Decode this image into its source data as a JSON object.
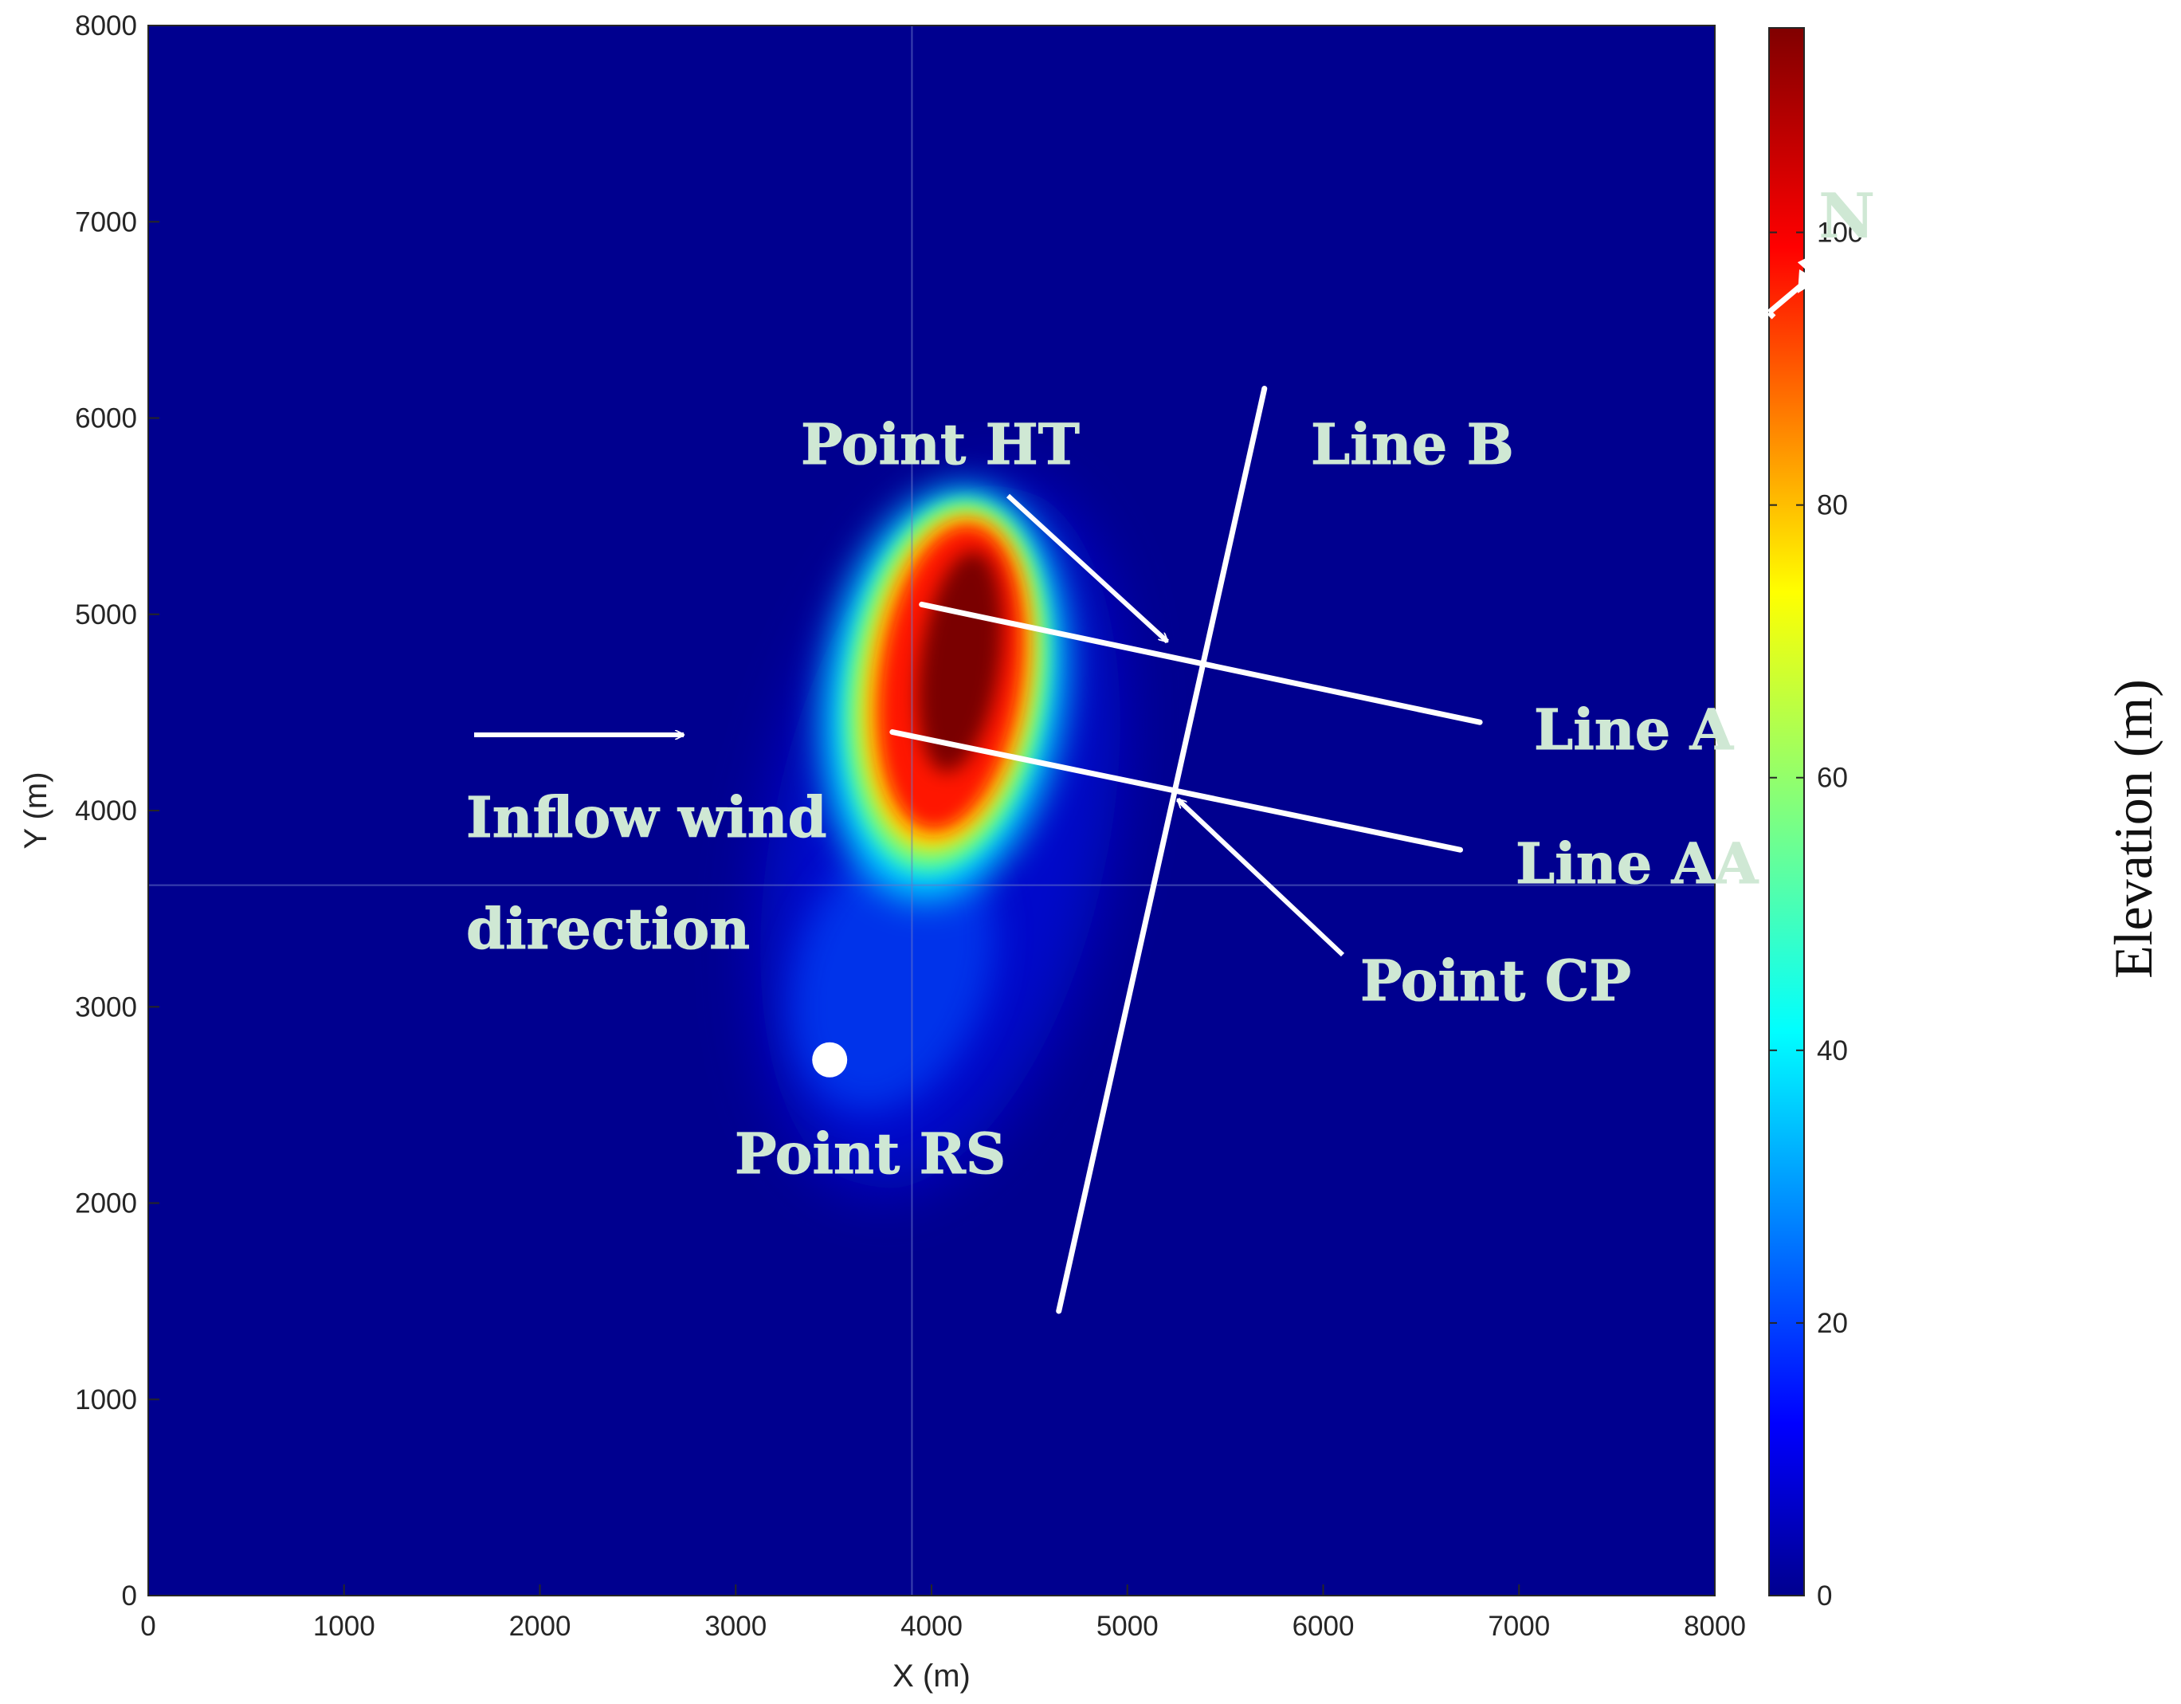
{
  "chart_data": {
    "type": "heatmap",
    "xlabel": "X (m)",
    "ylabel": "Y (m)",
    "xlim": [
      0,
      8000
    ],
    "ylim": [
      0,
      8000
    ],
    "xticks": [
      0,
      1000,
      2000,
      3000,
      4000,
      5000,
      6000,
      7000,
      8000
    ],
    "yticks": [
      0,
      1000,
      2000,
      3000,
      4000,
      5000,
      6000,
      7000,
      8000
    ],
    "xtick_labels": [
      "0",
      "1000",
      "2000",
      "3000",
      "4000",
      "5000",
      "6000",
      "7000",
      "8000"
    ],
    "ytick_labels": [
      "0",
      "1000",
      "2000",
      "3000",
      "4000",
      "5000",
      "6000",
      "7000",
      "8000"
    ],
    "gridlines_drawn": {
      "x": 3900,
      "y": 3620
    },
    "colormap": "jet",
    "colorbar": {
      "label": "Elevation (m)",
      "range": [
        0,
        115
      ],
      "ticks": [
        0,
        20,
        40,
        60,
        80,
        100
      ],
      "tick_labels": [
        "0",
        "20",
        "40",
        "60",
        "80",
        "100"
      ]
    },
    "surface": {
      "description_values": [
        {
          "x": 4180,
          "y": 4700,
          "elevation": 115
        },
        {
          "x": 4150,
          "y": 4400,
          "elevation": 95
        },
        {
          "x": 4050,
          "y": 4050,
          "elevation": 75
        },
        {
          "x": 4100,
          "y": 3200,
          "elevation": 25
        },
        {
          "x": 3550,
          "y": 2780,
          "elevation": 20
        }
      ]
    },
    "lines": [
      {
        "name": "Line B",
        "x": [
          4650,
          5700
        ],
        "y": [
          1450,
          6150
        ]
      },
      {
        "name": "Line A",
        "x": [
          3950,
          6800
        ],
        "y": [
          5050,
          4450
        ]
      },
      {
        "name": "Line AA",
        "x": [
          3800,
          6700
        ],
        "y": [
          4400,
          3800
        ]
      }
    ],
    "points": [
      {
        "name": "Point RS",
        "x": 3480,
        "y": 2730
      },
      {
        "name": "Point HT",
        "x": 5250,
        "y": 4800
      },
      {
        "name": "Point CP",
        "x": 5250,
        "y": 4100
      }
    ],
    "annotations": [
      "Point HT",
      "Line B",
      "Line A",
      "Line AA",
      "Point CP",
      "Point RS",
      "Inflow wind",
      "direction",
      "N"
    ]
  },
  "colors": {
    "background_field": "#00008f",
    "annotation_text": "#cfe8d4",
    "lines": "#ffffff"
  }
}
